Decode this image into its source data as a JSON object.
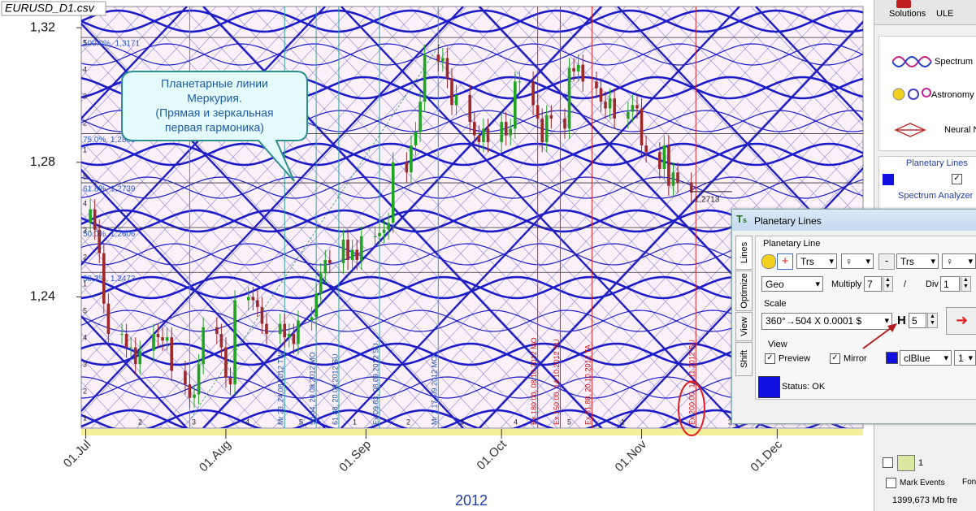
{
  "chart_data": {
    "type": "candlestick",
    "title": "EURUSD_D1.csv",
    "x_title": "2012",
    "x": [
      "2012-07-02",
      "2012-07-03",
      "2012-07-04",
      "2012-07-05",
      "2012-07-06",
      "2012-07-09",
      "2012-07-10",
      "2012-07-11",
      "2012-07-12",
      "2012-07-13",
      "2012-07-16",
      "2012-07-17",
      "2012-07-18",
      "2012-07-19",
      "2012-07-20",
      "2012-07-23",
      "2012-07-24",
      "2012-07-25",
      "2012-07-26",
      "2012-07-27",
      "2012-07-30",
      "2012-07-31",
      "2012-08-01",
      "2012-08-02",
      "2012-08-03",
      "2012-08-06",
      "2012-08-07",
      "2012-08-08",
      "2012-08-09",
      "2012-08-10",
      "2012-08-13",
      "2012-08-14",
      "2012-08-15",
      "2012-08-16",
      "2012-08-17",
      "2012-08-20",
      "2012-08-21",
      "2012-08-22",
      "2012-08-23",
      "2012-08-24",
      "2012-08-27",
      "2012-08-28",
      "2012-08-29",
      "2012-08-30",
      "2012-08-31",
      "2012-09-03",
      "2012-09-04",
      "2012-09-05",
      "2012-09-06",
      "2012-09-07",
      "2012-09-10",
      "2012-09-11",
      "2012-09-12",
      "2012-09-13",
      "2012-09-14",
      "2012-09-17",
      "2012-09-18",
      "2012-09-19",
      "2012-09-20",
      "2012-09-21",
      "2012-09-24",
      "2012-09-25",
      "2012-09-26",
      "2012-09-27",
      "2012-09-28",
      "2012-10-01",
      "2012-10-02",
      "2012-10-03",
      "2012-10-04",
      "2012-10-05",
      "2012-10-08",
      "2012-10-09",
      "2012-10-10",
      "2012-10-11",
      "2012-10-12",
      "2012-10-15",
      "2012-10-16",
      "2012-10-17",
      "2012-10-18",
      "2012-10-19",
      "2012-10-22",
      "2012-10-23",
      "2012-10-24",
      "2012-10-25",
      "2012-10-26",
      "2012-10-29",
      "2012-10-30",
      "2012-10-31",
      "2012-11-01",
      "2012-11-02",
      "2012-11-05",
      "2012-11-06",
      "2012-11-07",
      "2012-11-08",
      "2012-11-09",
      "2012-11-12"
    ],
    "open": [
      1.262,
      1.266,
      1.26,
      1.253,
      1.238,
      1.229,
      1.229,
      1.225,
      1.225,
      1.22,
      1.224,
      1.229,
      1.228,
      1.227,
      1.228,
      1.218,
      1.214,
      1.21,
      1.211,
      1.22,
      1.231,
      1.229,
      1.225,
      1.216,
      1.214,
      1.239,
      1.24,
      1.239,
      1.237,
      1.232,
      1.229,
      1.232,
      1.228,
      1.229,
      1.226,
      1.233,
      1.234,
      1.241,
      1.247,
      1.251,
      1.25,
      1.257,
      1.251,
      1.254,
      1.251,
      1.258,
      1.258,
      1.259,
      1.26,
      1.262,
      1.28,
      1.277,
      1.285,
      1.289,
      1.298,
      1.312,
      1.31,
      1.311,
      1.305,
      1.297,
      1.3,
      1.292,
      1.288,
      1.286,
      1.29,
      1.286,
      1.292,
      1.288,
      1.29,
      1.304,
      1.304,
      1.297,
      1.293,
      1.286,
      1.294,
      1.293,
      1.29,
      1.308,
      1.307,
      1.309,
      1.304,
      1.302,
      1.298,
      1.296,
      1.299,
      1.293,
      1.295,
      1.297,
      1.296,
      1.285,
      1.283,
      1.278,
      1.285,
      1.273,
      1.277,
      1.274
    ],
    "high": [
      1.269,
      1.269,
      1.263,
      1.256,
      1.241,
      1.232,
      1.232,
      1.228,
      1.228,
      1.227,
      1.232,
      1.232,
      1.231,
      1.231,
      1.231,
      1.221,
      1.217,
      1.214,
      1.223,
      1.234,
      1.234,
      1.232,
      1.228,
      1.219,
      1.242,
      1.243,
      1.243,
      1.242,
      1.24,
      1.235,
      1.235,
      1.235,
      1.232,
      1.232,
      1.236,
      1.237,
      1.244,
      1.25,
      1.254,
      1.254,
      1.26,
      1.26,
      1.257,
      1.257,
      1.261,
      1.261,
      1.262,
      1.263,
      1.265,
      1.283,
      1.283,
      1.288,
      1.292,
      1.301,
      1.315,
      1.315,
      1.314,
      1.314,
      1.308,
      1.303,
      1.303,
      1.295,
      1.291,
      1.293,
      1.293,
      1.295,
      1.295,
      1.293,
      1.307,
      1.307,
      1.307,
      1.3,
      1.296,
      1.297,
      1.297,
      1.296,
      1.311,
      1.311,
      1.312,
      1.312,
      1.307,
      1.305,
      1.301,
      1.302,
      1.302,
      1.298,
      1.3,
      1.3,
      1.299,
      1.288,
      1.286,
      1.288,
      1.288,
      1.28,
      1.28,
      1.277
    ],
    "low": [
      1.259,
      1.257,
      1.25,
      1.235,
      1.226,
      1.226,
      1.222,
      1.222,
      1.217,
      1.217,
      1.221,
      1.225,
      1.224,
      1.224,
      1.215,
      1.211,
      1.207,
      1.207,
      1.208,
      1.217,
      1.226,
      1.222,
      1.213,
      1.211,
      1.211,
      1.236,
      1.236,
      1.234,
      1.229,
      1.226,
      1.226,
      1.225,
      1.225,
      1.223,
      1.223,
      1.23,
      1.231,
      1.238,
      1.244,
      1.247,
      1.247,
      1.248,
      1.248,
      1.248,
      1.248,
      1.255,
      1.255,
      1.256,
      1.257,
      1.259,
      1.274,
      1.274,
      1.282,
      1.286,
      1.295,
      1.307,
      1.307,
      1.302,
      1.294,
      1.294,
      1.289,
      1.285,
      1.283,
      1.283,
      1.283,
      1.283,
      1.285,
      1.285,
      1.287,
      1.301,
      1.294,
      1.29,
      1.283,
      1.283,
      1.29,
      1.287,
      1.287,
      1.304,
      1.304,
      1.301,
      1.299,
      1.295,
      1.293,
      1.293,
      1.29,
      1.29,
      1.292,
      1.293,
      1.282,
      1.28,
      1.275,
      1.275,
      1.27,
      1.27,
      1.271,
      1.268
    ],
    "close": [
      1.266,
      1.26,
      1.253,
      1.238,
      1.229,
      1.229,
      1.225,
      1.225,
      1.22,
      1.224,
      1.229,
      1.228,
      1.227,
      1.228,
      1.218,
      1.214,
      1.21,
      1.211,
      1.22,
      1.231,
      1.229,
      1.225,
      1.216,
      1.214,
      1.239,
      1.24,
      1.239,
      1.237,
      1.232,
      1.229,
      1.232,
      1.228,
      1.229,
      1.226,
      1.233,
      1.234,
      1.241,
      1.247,
      1.251,
      1.25,
      1.257,
      1.251,
      1.254,
      1.251,
      1.258,
      1.258,
      1.259,
      1.26,
      1.262,
      1.28,
      1.277,
      1.285,
      1.289,
      1.298,
      1.312,
      1.31,
      1.311,
      1.305,
      1.297,
      1.3,
      1.292,
      1.288,
      1.286,
      1.29,
      1.286,
      1.292,
      1.288,
      1.29,
      1.304,
      1.304,
      1.297,
      1.293,
      1.286,
      1.294,
      1.293,
      1.29,
      1.308,
      1.307,
      1.309,
      1.304,
      1.302,
      1.298,
      1.296,
      1.299,
      1.293,
      1.295,
      1.297,
      1.296,
      1.285,
      1.283,
      1.278,
      1.285,
      1.273,
      1.277,
      1.274,
      1.271
    ],
    "up_color": "#1fa51f",
    "down_color": "#9c2a2a",
    "xlim": [
      "2012-06-30",
      "2012-12-20"
    ],
    "ylim": [
      1.201,
      1.3263
    ],
    "yticks": [
      {
        "value": 1.24,
        "label": "1,24"
      },
      {
        "value": 1.28,
        "label": "1,28"
      },
      {
        "value": 1.32,
        "label": "1,32"
      }
    ],
    "xticks": [
      {
        "value": "2012-07-01",
        "label": "01.Jul"
      },
      {
        "value": "2012-08-01",
        "label": "01.Aug"
      },
      {
        "value": "2012-09-01",
        "label": "01.Sep"
      },
      {
        "value": "2012-10-01",
        "label": "01.Oct"
      },
      {
        "value": "2012-11-01",
        "label": "01.Nov"
      },
      {
        "value": "2012-12-01",
        "label": "01.Dec"
      }
    ],
    "fib_levels": [
      {
        "value": 1.3171,
        "label": "100.0%, 1,3171"
      },
      {
        "value": 1.2885,
        "label": "75.0%, 1,2885"
      },
      {
        "value": 1.2739,
        "label": "61.8%, 1,2739"
      },
      {
        "value": 1.2606,
        "label": "50.0%, 1,2606"
      },
      {
        "value": 1.2473,
        "label": "38.2%, 1,2473"
      }
    ],
    "last_price": {
      "value": 1.2713,
      "label": "1,2713"
    },
    "markers": [
      {
        "date": "2012-07-24",
        "color": "#2aa7a0"
      },
      {
        "date": "2012-08-14",
        "label": "Mr 23, 24.08.2012 TW",
        "color": "#2aa7a0"
      },
      {
        "date": "2012-08-21",
        "label": "50.84, 20.08.2012 MO",
        "color": "#2aa7a0"
      },
      {
        "date": "2012-08-26",
        "label": "61.88, 20.08.2012 SU",
        "color": "#2aa7a0"
      },
      {
        "date": "2012-09-04",
        "label": "Ex 09.83, 08.09.2012 SU",
        "color": "#2aa7a0"
      },
      {
        "date": "2012-09-17",
        "label": "Mr 1.17, 09.2012 MO",
        "color": "#2aa7a0"
      },
      {
        "date": "2012-10-09",
        "label": "Ex 180.00, 08.10.2012 MO",
        "color": "#dd2222"
      },
      {
        "date": "2012-10-14",
        "label": "Ex 150.00, 14.10.2012 SU",
        "color": "#dd2222"
      },
      {
        "date": "2012-10-21",
        "label": "Ex 61.88, 20.10.2012 TA",
        "color": "#dd2222"
      },
      {
        "date": "2012-11-13",
        "label": "Ex 200.00, 14.11.2012 SU",
        "color": "#dd2222"
      }
    ],
    "callout": [
      "Планетарные линии",
      "Меркурия.",
      "(Прямая и зеркальная",
      "первая гармоника)"
    ],
    "harmonic_numbers": [
      "1",
      "2",
      "3",
      "4",
      "5"
    ]
  },
  "toolbar": {
    "solutions": "Solutions",
    "ule": "ULE"
  },
  "sidebar": {
    "items": [
      "Spectrum",
      "Astronomy",
      "Neural N"
    ],
    "planetary_lines": "Planetary Lines",
    "spectrum_analyzer": "Spectrum Analyzer",
    "counter": 1,
    "mark_events": "Mark Events",
    "fon": "Fon",
    "memory": "1399,673 Mb fre"
  },
  "dialog": {
    "title": "Planetary Lines",
    "tabs": [
      "Lines",
      "Optimize",
      "View",
      "Shift"
    ],
    "group": "Planetary Line",
    "planet_a": "Trs",
    "planet_b": "Trs",
    "minus": "-",
    "coordinate": "Geo",
    "multiply_label": "Multiply",
    "multiply": 7,
    "slash": "/",
    "div_label": "Div",
    "div": 1,
    "scale_label": "Scale",
    "scale": "360°→504 X 0.0001 $",
    "h_label": "H",
    "h": 5,
    "view_label": "View",
    "preview": "Preview",
    "mirror": "Mirror",
    "color": "clBlue",
    "width": 1,
    "status": "Status: OK"
  }
}
